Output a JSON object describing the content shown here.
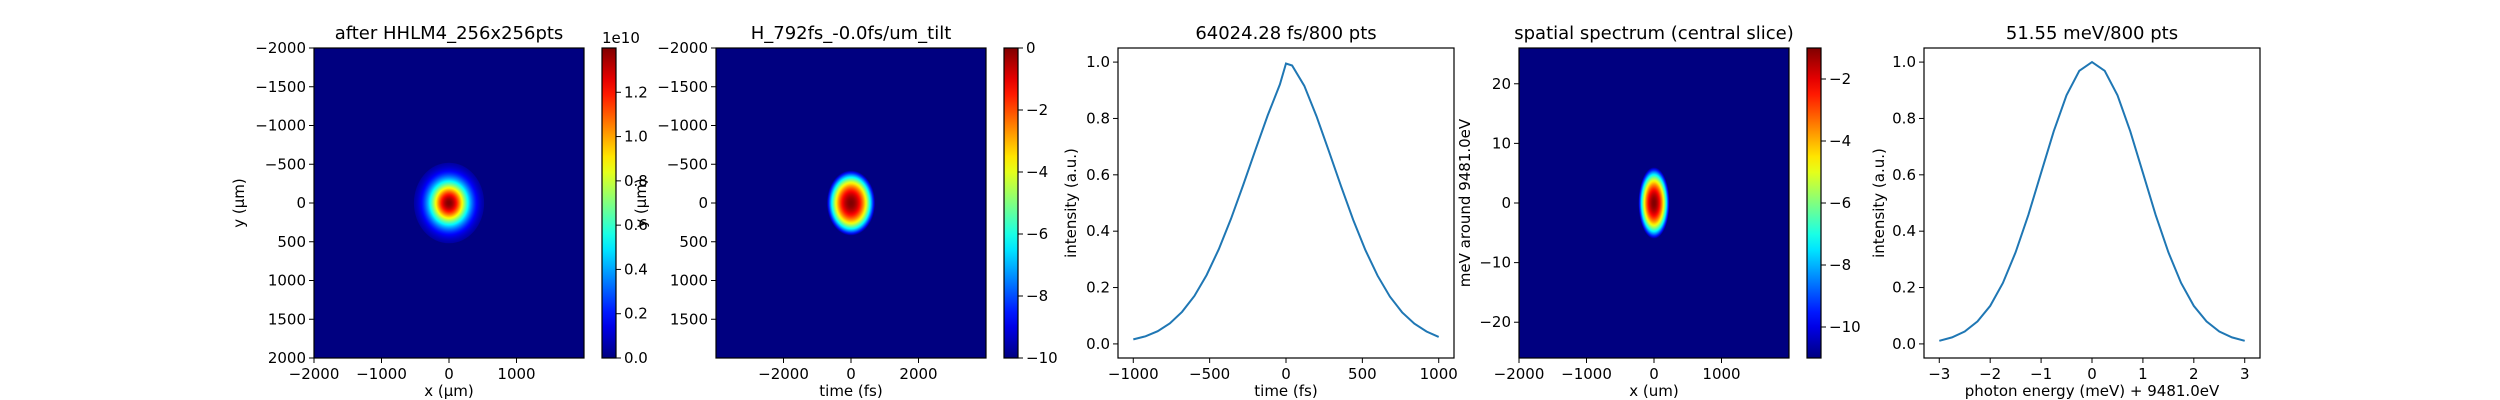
{
  "chart_data": [
    {
      "type": "heatmap",
      "title": "after HHLM4_256x256pts",
      "xlabel": "x (μm)",
      "ylabel": "y (μm)",
      "xlim": [
        -2000,
        2000
      ],
      "ylim": [
        2000,
        -2000
      ],
      "x_ticks": [
        "−2000",
        "−1000",
        "0",
        "1000"
      ],
      "y_ticks": [
        "−2000",
        "−1500",
        "−1000",
        "−500",
        "0",
        "500",
        "1000",
        "1500",
        "2000"
      ],
      "colormap": "jet",
      "colorbar": {
        "range": [
          0,
          1.4
        ],
        "ticks": [
          "0.0",
          "0.2",
          "0.4",
          "0.6",
          "0.8",
          "1.0",
          "1.2"
        ],
        "offset_label": "1e10"
      },
      "gaussian": {
        "center_x": 0,
        "center_y": 0,
        "sigma_x": 200,
        "sigma_y": 200
      }
    },
    {
      "type": "heatmap",
      "title": "H_792fs_-0.0fs/um_tilt",
      "xlabel": "time (fs)",
      "ylabel": "y (μm)",
      "xlim": [
        -4000,
        4000
      ],
      "ylim": [
        2000,
        -2000
      ],
      "x_ticks": [
        "−2000",
        "0",
        "2000"
      ],
      "y_ticks": [
        "−2000",
        "−1500",
        "−1000",
        "−500",
        "0",
        "500",
        "1000",
        "1500"
      ],
      "colormap": "jet",
      "colorbar": {
        "range": [
          -10,
          0
        ],
        "ticks": [
          "0",
          "−2",
          "−4",
          "−6",
          "−8",
          "−10"
        ]
      },
      "log_gaussian": {
        "center_x": 0,
        "center_y": 0,
        "sigma_x": 620,
        "sigma_y": 420
      }
    },
    {
      "type": "line",
      "title": "64024.28 fs/800 pts",
      "xlabel": "time (fs)",
      "ylabel": "intensity (a.u.)",
      "xlim": [
        -1100,
        1100
      ],
      "ylim": [
        -0.05,
        1.05
      ],
      "x_ticks": [
        "−1000",
        "−500",
        "0",
        "500",
        "1000"
      ],
      "y_ticks": [
        "0.0",
        "0.2",
        "0.4",
        "0.6",
        "0.8",
        "1.0"
      ],
      "series": [
        {
          "color": "#1f77b4",
          "x": [
            -1000,
            -920,
            -840,
            -760,
            -680,
            -600,
            -520,
            -440,
            -360,
            -280,
            -200,
            -120,
            -40,
            0,
            40,
            120,
            200,
            280,
            360,
            440,
            520,
            600,
            680,
            760,
            840,
            920,
            1000
          ],
          "values": [
            0.016,
            0.027,
            0.045,
            0.073,
            0.114,
            0.17,
            0.244,
            0.336,
            0.444,
            0.564,
            0.689,
            0.811,
            0.921,
            0.995,
            0.988,
            0.916,
            0.808,
            0.685,
            0.56,
            0.44,
            0.333,
            0.242,
            0.168,
            0.112,
            0.072,
            0.044,
            0.025
          ]
        }
      ]
    },
    {
      "type": "heatmap",
      "title": "spatial spectrum (central slice)",
      "xlabel": "x (um)",
      "ylabel": "meV around 9481.0eV",
      "xlim": [
        -2000,
        2000
      ],
      "ylim": [
        -26,
        26
      ],
      "x_ticks": [
        "−2000",
        "−1000",
        "0",
        "1000"
      ],
      "y_ticks": [
        "−20",
        "−10",
        "0",
        "10",
        "20"
      ],
      "colormap": "jet",
      "colorbar": {
        "range": [
          -11,
          -1
        ],
        "ticks": [
          "−2",
          "−4",
          "−6",
          "−8",
          "−10"
        ]
      },
      "log_gaussian": {
        "center_x": 0,
        "center_y": 0,
        "sigma_x": 200,
        "sigma_y": 6
      }
    },
    {
      "type": "line",
      "title": "51.55 meV/800 pts",
      "xlabel": "photon energy (meV) + 9481.0eV",
      "ylabel": "intensity (a.u.)",
      "xlim": [
        -3.3,
        3.3
      ],
      "ylim": [
        -0.05,
        1.05
      ],
      "x_ticks": [
        "−3",
        "−2",
        "−1",
        "0",
        "1",
        "2",
        "3"
      ],
      "y_ticks": [
        "0.0",
        "0.2",
        "0.4",
        "0.6",
        "0.8",
        "1.0"
      ],
      "series": [
        {
          "color": "#1f77b4",
          "x": [
            -3.0,
            -2.75,
            -2.5,
            -2.25,
            -2.0,
            -1.75,
            -1.5,
            -1.25,
            -1.0,
            -0.75,
            -0.5,
            -0.25,
            0.0,
            0.25,
            0.5,
            0.75,
            1.0,
            1.25,
            1.5,
            1.75,
            2.0,
            2.25,
            2.5,
            2.75,
            3.0
          ],
          "values": [
            0.011,
            0.023,
            0.044,
            0.08,
            0.135,
            0.216,
            0.325,
            0.458,
            0.607,
            0.755,
            0.882,
            0.969,
            1.0,
            0.969,
            0.882,
            0.755,
            0.607,
            0.458,
            0.325,
            0.216,
            0.135,
            0.08,
            0.044,
            0.023,
            0.011
          ]
        }
      ]
    }
  ]
}
